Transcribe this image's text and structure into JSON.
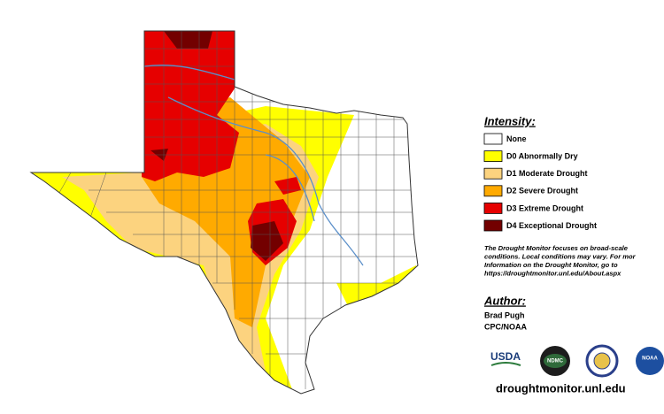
{
  "legend": {
    "title": "Intensity:",
    "items": [
      {
        "label": "None",
        "color": "#ffffff"
      },
      {
        "label": "D0 Abnormally Dry",
        "color": "#ffff00"
      },
      {
        "label": "D1 Moderate Drought",
        "color": "#fcd37f"
      },
      {
        "label": "D2 Severe Drought",
        "color": "#ffaa00"
      },
      {
        "label": "D3 Extreme Drought",
        "color": "#e60000"
      },
      {
        "label": "D4 Exceptional Drought",
        "color": "#730000"
      }
    ]
  },
  "note": [
    "The Drought Monitor focuses on broad-scale",
    "conditions. Local conditions may vary. For mor",
    "Information on the Drought Monitor, go to",
    "https://droughtmonitor.unl.edu/About.aspx"
  ],
  "author": {
    "title": "Author:",
    "lines": [
      "Brad Pugh",
      "CPC/NOAA"
    ]
  },
  "logos": [
    "USDA",
    "NDMC",
    "NOAA"
  ],
  "footer": "droughtmonitor.unl.edu"
}
